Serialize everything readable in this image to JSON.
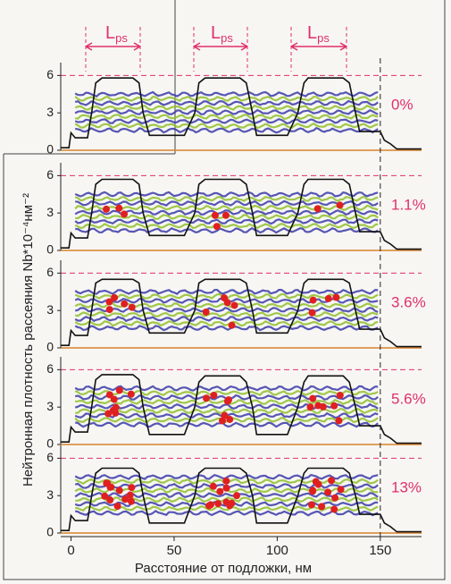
{
  "chart_data": [
    {
      "type": "line",
      "annotation": "0%",
      "xlim": [
        -5,
        170
      ],
      "ylim": [
        0,
        6.6
      ],
      "yticks": [
        0,
        3,
        6
      ],
      "period_labels": [
        {
          "text": "L",
          "subscript": "ps"
        },
        {
          "text": "L",
          "subscript": "ps"
        },
        {
          "text": "L",
          "subscript": "ps"
        }
      ],
      "x": [
        -5,
        -1,
        0,
        2,
        8,
        10,
        12,
        15,
        30,
        33,
        35,
        38,
        55,
        60,
        62,
        65,
        82,
        85,
        88,
        90,
        105,
        110,
        113,
        115,
        132,
        135,
        138,
        140,
        150,
        152,
        155,
        158,
        170
      ],
      "values": [
        0.2,
        0.2,
        1.4,
        1.0,
        1.0,
        3,
        5.4,
        5.8,
        5.8,
        5.4,
        3,
        1.2,
        1.2,
        3,
        5.4,
        5.8,
        5.8,
        5.4,
        3,
        1.2,
        1.2,
        3,
        5.4,
        5.8,
        5.8,
        5.4,
        3,
        1.5,
        1.5,
        0.8,
        0.5,
        0.1,
        0.1
      ]
    },
    {
      "type": "line",
      "annotation": "1.1%",
      "xlim": [
        -5,
        170
      ],
      "ylim": [
        0,
        6.6
      ],
      "yticks": [
        0,
        3,
        6
      ],
      "x": [
        -5,
        -1,
        0,
        2,
        8,
        10,
        12,
        15,
        30,
        33,
        35,
        38,
        55,
        60,
        62,
        65,
        82,
        85,
        88,
        90,
        105,
        110,
        113,
        115,
        132,
        135,
        138,
        140,
        150,
        152,
        155,
        158,
        170
      ],
      "values": [
        0.2,
        0.2,
        1.4,
        1.0,
        1.0,
        3,
        5.3,
        5.7,
        5.7,
        5.3,
        3,
        1.2,
        1.2,
        3,
        5.3,
        5.7,
        5.7,
        5.3,
        3,
        1.2,
        1.2,
        3,
        5.3,
        5.7,
        5.7,
        5.3,
        3,
        1.5,
        1.5,
        0.8,
        0.5,
        0.1,
        0.1
      ]
    },
    {
      "type": "line",
      "annotation": "3.6%",
      "xlim": [
        -5,
        170
      ],
      "ylim": [
        0,
        6.6
      ],
      "yticks": [
        0,
        3,
        6
      ],
      "x": [
        -5,
        -1,
        0,
        2,
        8,
        10,
        12,
        15,
        30,
        33,
        35,
        38,
        55,
        60,
        62,
        65,
        82,
        85,
        88,
        90,
        105,
        110,
        113,
        115,
        132,
        135,
        138,
        140,
        150,
        152,
        155,
        158,
        170
      ],
      "values": [
        0.2,
        0.2,
        1.4,
        1.0,
        1.0,
        3,
        5.2,
        5.5,
        5.5,
        5.2,
        3,
        1.2,
        1.2,
        3,
        5.2,
        5.5,
        5.5,
        5.2,
        3,
        1.2,
        1.2,
        3,
        5.2,
        5.5,
        5.5,
        5.2,
        3,
        1.5,
        1.5,
        0.8,
        0.5,
        0.1,
        0.1
      ]
    },
    {
      "type": "line",
      "annotation": "5.6%",
      "xlim": [
        -5,
        170
      ],
      "ylim": [
        0,
        6.6
      ],
      "yticks": [
        0,
        3,
        6
      ],
      "x": [
        -5,
        -1,
        0,
        2,
        8,
        10,
        12,
        15,
        30,
        33,
        35,
        38,
        55,
        60,
        62,
        65,
        82,
        85,
        88,
        90,
        105,
        110,
        113,
        115,
        132,
        135,
        138,
        140,
        150,
        152,
        155,
        158,
        170
      ],
      "values": [
        0.2,
        0.2,
        1.4,
        1.0,
        1.0,
        3,
        5.2,
        5.6,
        5.6,
        5.2,
        3,
        0.8,
        0.8,
        3,
        5.0,
        5.5,
        5.5,
        5.0,
        3,
        0.8,
        0.8,
        3,
        5.0,
        5.5,
        5.5,
        5.0,
        3,
        1.5,
        1.5,
        0.8,
        0.5,
        0.1,
        0.1
      ]
    },
    {
      "type": "line",
      "annotation": "13%",
      "xlim": [
        -5,
        170
      ],
      "ylim": [
        0,
        6.6
      ],
      "yticks": [
        0,
        3,
        6
      ],
      "xticks": [
        0,
        50,
        100,
        150
      ],
      "xlabel": "Расстояние от подложки, нм",
      "ylabel": "Нейтронная плотность рассеяния Nb*10⁻⁴нм⁻²",
      "x": [
        -5,
        -1,
        0,
        2,
        8,
        10,
        12,
        15,
        30,
        33,
        35,
        38,
        55,
        60,
        62,
        65,
        82,
        85,
        88,
        90,
        105,
        110,
        113,
        115,
        132,
        135,
        138,
        140,
        150,
        152,
        155,
        158,
        170
      ],
      "values": [
        0.2,
        0.2,
        1.4,
        1.0,
        1.0,
        3,
        4.8,
        5.2,
        5.2,
        4.8,
        3,
        0.8,
        0.8,
        3,
        4.8,
        5.2,
        5.2,
        4.8,
        3,
        0.8,
        0.8,
        3,
        4.8,
        5.2,
        5.2,
        4.8,
        3,
        1.5,
        1.5,
        0.8,
        0.5,
        0.1,
        0.1
      ]
    }
  ]
}
